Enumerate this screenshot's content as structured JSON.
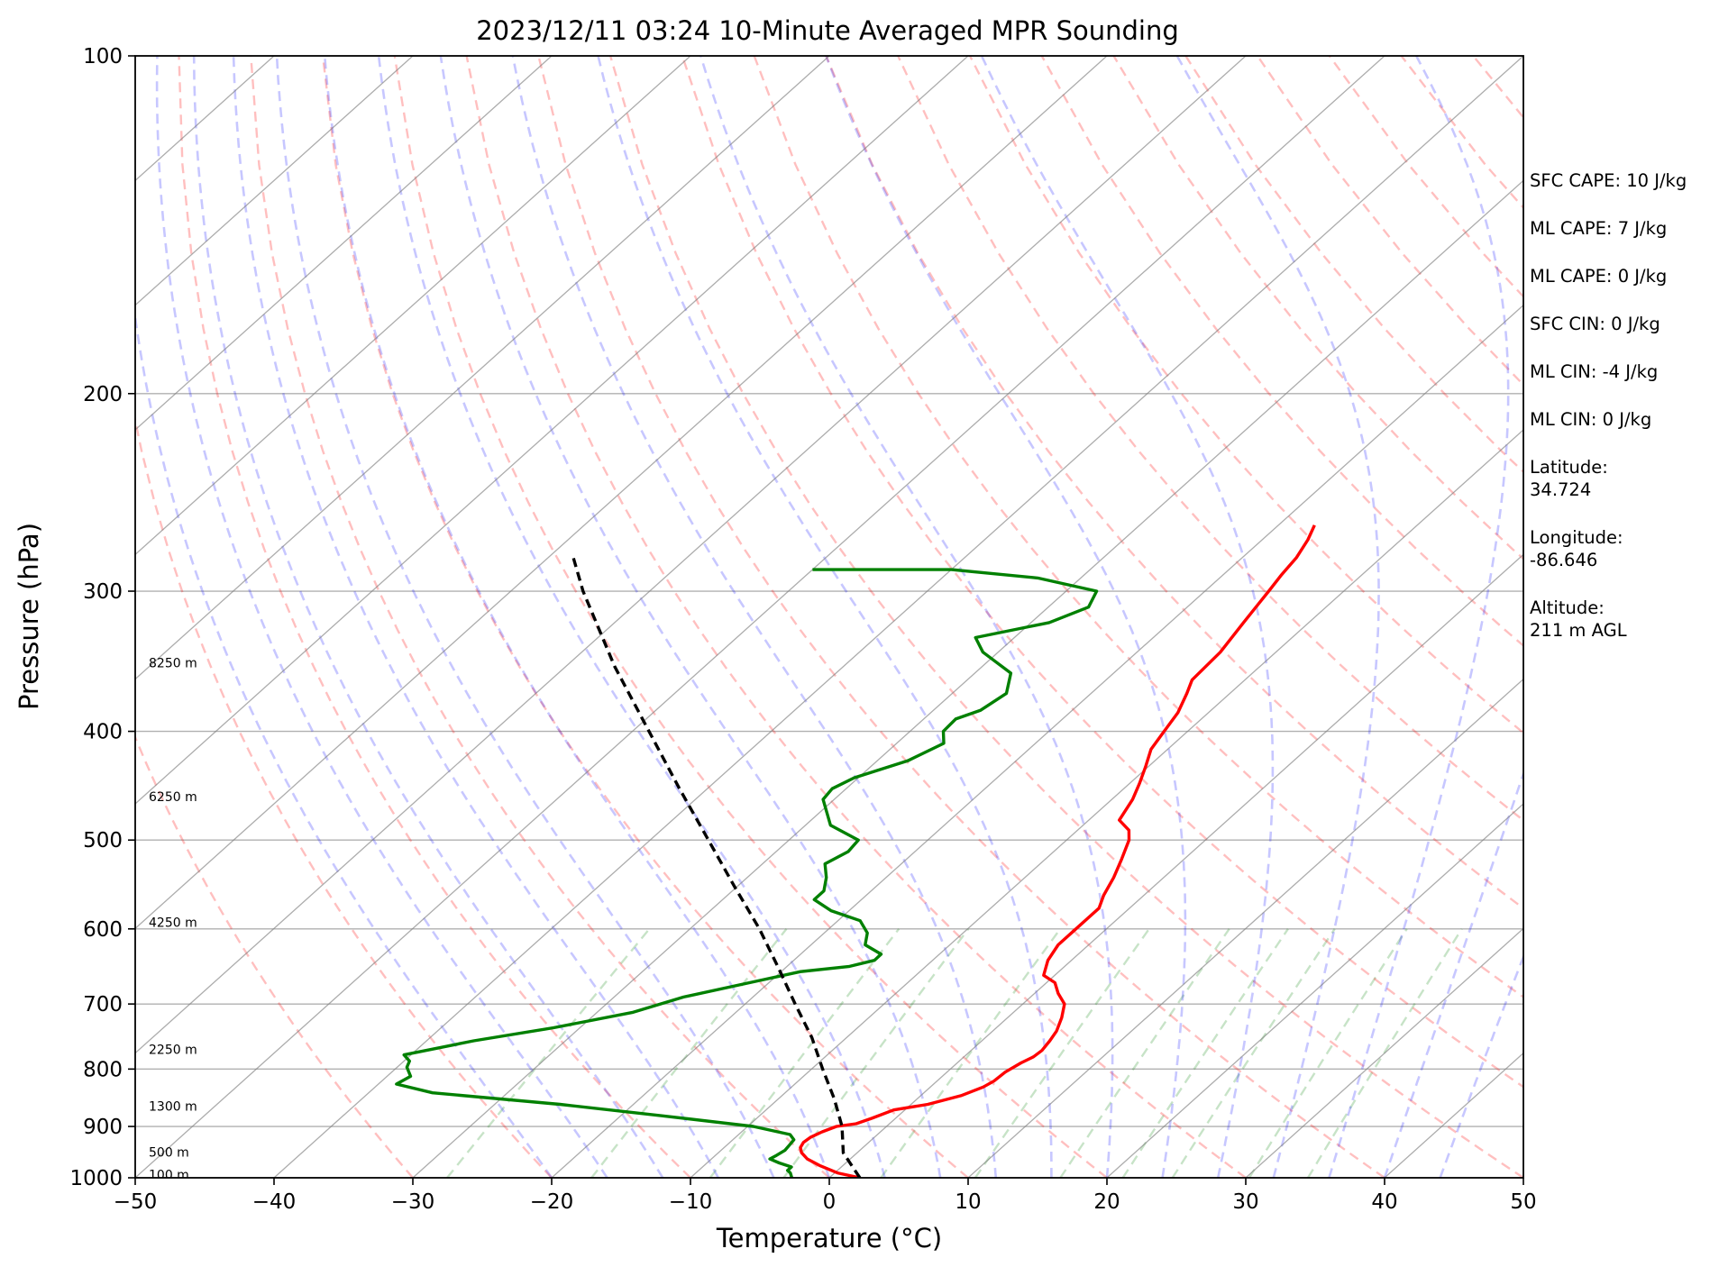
{
  "chart_data": {
    "type": "skew-t",
    "title": "2023/12/11 03:24 10-Minute Averaged MPR Sounding",
    "xlabel": "Temperature (°C)",
    "ylabel": "Pressure (hPa)",
    "xlim": [
      -50,
      50
    ],
    "ylim": [
      1000,
      100
    ],
    "y_scale": "log",
    "grid": true,
    "x_ticks": [
      "−50",
      "−40",
      "−30",
      "−20",
      "−10",
      "0",
      "10",
      "20",
      "30",
      "40",
      "50"
    ],
    "x_tick_values": [
      -50,
      -40,
      -30,
      -20,
      -10,
      0,
      10,
      20,
      30,
      40,
      50
    ],
    "y_ticks": [
      "100",
      "200",
      "300",
      "400",
      "500",
      "600",
      "700",
      "800",
      "900",
      "1000"
    ],
    "y_tick_values": [
      100,
      200,
      300,
      400,
      500,
      600,
      700,
      800,
      900,
      1000
    ],
    "height_labels": [
      {
        "text": "100 m",
        "p": 995
      },
      {
        "text": "500 m",
        "p": 950
      },
      {
        "text": "1300 m",
        "p": 865
      },
      {
        "text": "2250 m",
        "p": 770
      },
      {
        "text": "4250 m",
        "p": 593
      },
      {
        "text": "6250 m",
        "p": 458
      },
      {
        "text": "8250 m",
        "p": 348
      }
    ],
    "series": [
      {
        "color": "#ff0000",
        "points": [
          [
            1000,
            2.2
          ],
          [
            990,
            0.2
          ],
          [
            975,
            -1.7
          ],
          [
            962,
            -3.1
          ],
          [
            950,
            -4.0
          ],
          [
            940,
            -4.5
          ],
          [
            930,
            -4.7
          ],
          [
            920,
            -4.6
          ],
          [
            910,
            -4.2
          ],
          [
            900,
            -3.6
          ],
          [
            895,
            -2.4
          ],
          [
            885,
            -1.7
          ],
          [
            870,
            -0.8
          ],
          [
            860,
            1.2
          ],
          [
            845,
            2.9
          ],
          [
            830,
            3.8
          ],
          [
            820,
            4.1
          ],
          [
            805,
            4.2
          ],
          [
            790,
            4.6
          ],
          [
            780,
            5.0
          ],
          [
            770,
            5.1
          ],
          [
            755,
            4.9
          ],
          [
            740,
            4.6
          ],
          [
            720,
            3.9
          ],
          [
            700,
            3.0
          ],
          [
            685,
            1.7
          ],
          [
            670,
            0.6
          ],
          [
            660,
            -0.8
          ],
          [
            640,
            -1.7
          ],
          [
            620,
            -2.2
          ],
          [
            600,
            -2.2
          ],
          [
            575,
            -2.2
          ],
          [
            560,
            -2.9
          ],
          [
            540,
            -3.6
          ],
          [
            520,
            -4.5
          ],
          [
            500,
            -5.5
          ],
          [
            490,
            -6.3
          ],
          [
            480,
            -7.8
          ],
          [
            460,
            -8.5
          ],
          [
            445,
            -9.3
          ],
          [
            430,
            -10.2
          ],
          [
            415,
            -11.2
          ],
          [
            400,
            -11.7
          ],
          [
            385,
            -12.2
          ],
          [
            370,
            -13.1
          ],
          [
            360,
            -13.8
          ],
          [
            340,
            -14.0
          ],
          [
            320,
            -14.7
          ],
          [
            300,
            -15.4
          ],
          [
            290,
            -15.8
          ],
          [
            280,
            -16.1
          ],
          [
            270,
            -16.7
          ],
          [
            262,
            -17.4
          ]
        ]
      },
      {
        "color": "#008000",
        "points": [
          [
            1000,
            -2.7
          ],
          [
            990,
            -3.2
          ],
          [
            985,
            -3.6
          ],
          [
            978,
            -3.6
          ],
          [
            970,
            -4.8
          ],
          [
            962,
            -5.8
          ],
          [
            955,
            -5.6
          ],
          [
            945,
            -5.4
          ],
          [
            935,
            -5.5
          ],
          [
            925,
            -5.6
          ],
          [
            915,
            -6.3
          ],
          [
            900,
            -9.6
          ],
          [
            880,
            -17.2
          ],
          [
            860,
            -25.3
          ],
          [
            840,
            -35.4
          ],
          [
            825,
            -38.7
          ],
          [
            812,
            -38.3
          ],
          [
            797,
            -39.3
          ],
          [
            787,
            -39.6
          ],
          [
            777,
            -40.5
          ],
          [
            755,
            -36.6
          ],
          [
            735,
            -31.9
          ],
          [
            712,
            -27.4
          ],
          [
            690,
            -25.0
          ],
          [
            670,
            -21.4
          ],
          [
            655,
            -18.6
          ],
          [
            648,
            -15.5
          ],
          [
            640,
            -14.2
          ],
          [
            632,
            -14.2
          ],
          [
            620,
            -16.1
          ],
          [
            605,
            -16.9
          ],
          [
            590,
            -18.4
          ],
          [
            578,
            -21.3
          ],
          [
            565,
            -23.4
          ],
          [
            555,
            -23.4
          ],
          [
            540,
            -24.3
          ],
          [
            525,
            -25.5
          ],
          [
            512,
            -24.8
          ],
          [
            500,
            -25.0
          ],
          [
            485,
            -28.2
          ],
          [
            460,
            -30.8
          ],
          [
            450,
            -31.0
          ],
          [
            440,
            -30.3
          ],
          [
            425,
            -27.8
          ],
          [
            410,
            -26.6
          ],
          [
            400,
            -27.6
          ],
          [
            390,
            -27.7
          ],
          [
            383,
            -26.6
          ],
          [
            370,
            -26.1
          ],
          [
            355,
            -27.4
          ],
          [
            340,
            -31.1
          ],
          [
            330,
            -32.8
          ],
          [
            320,
            -28.7
          ],
          [
            310,
            -27.1
          ],
          [
            300,
            -27.8
          ],
          [
            292,
            -33.1
          ],
          [
            287,
            -40.0
          ],
          [
            287,
            -50.0
          ]
        ]
      },
      {
        "color": "#000000",
        "dashed": true,
        "points": [
          [
            1000,
            2.2
          ],
          [
            950,
            -1.0
          ],
          [
            900,
            -3.2
          ],
          [
            850,
            -6.0
          ],
          [
            800,
            -9.2
          ],
          [
            750,
            -12.5
          ],
          [
            700,
            -16.4
          ],
          [
            650,
            -20.5
          ],
          [
            600,
            -25.0
          ],
          [
            550,
            -30.2
          ],
          [
            500,
            -35.8
          ],
          [
            450,
            -42.0
          ],
          [
            400,
            -48.8
          ],
          [
            350,
            -56.5
          ],
          [
            300,
            -64.8
          ],
          [
            280,
            -68.2
          ]
        ]
      }
    ],
    "reference_lines": {
      "isotherm_color": "#808080",
      "dry_adiabat_color": "#ff0000",
      "moist_adiabat_color": "#0000ff",
      "mixing_ratio_color": "#008000"
    }
  },
  "side_panel": {
    "items": [
      "SFC CAPE: 10 J/kg",
      "ML CAPE: 7 J/kg",
      "ML CAPE: 0 J/kg",
      "SFC CIN: 0 J/kg",
      "ML CIN: -4 J/kg",
      "ML CIN: 0 J/kg"
    ],
    "latitude_label": "Latitude:",
    "latitude_value": "34.724",
    "longitude_label": "Longitude:",
    "longitude_value": "-86.646",
    "altitude_label": "Altitude:",
    "altitude_value": "211 m AGL"
  }
}
